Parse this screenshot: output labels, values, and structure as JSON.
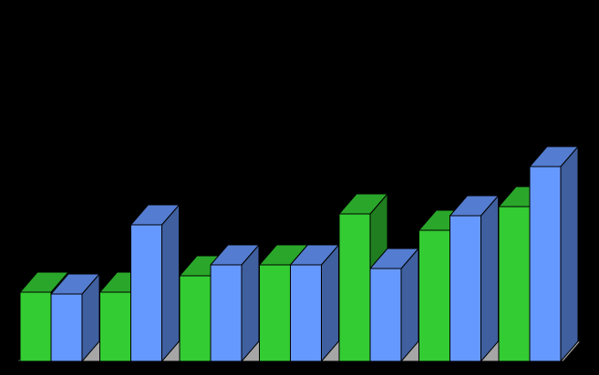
{
  "chart_data": {
    "type": "bar",
    "style": "3d-grouped",
    "categories": [
      "",
      "",
      "",
      "",
      "",
      "",
      ""
    ],
    "series": [
      {
        "values": [
          38,
          38,
          47,
          53,
          81,
          72,
          85
        ],
        "color": "#33cc33"
      },
      {
        "values": [
          37,
          75,
          53,
          53,
          51,
          80,
          107
        ],
        "color": "#6699ff"
      }
    ],
    "ylim": [
      0,
      110
    ],
    "grid": false,
    "legend": "none",
    "colors": {
      "background": "#000000",
      "floor": "#a6a6a6",
      "outline": "#000000"
    }
  }
}
